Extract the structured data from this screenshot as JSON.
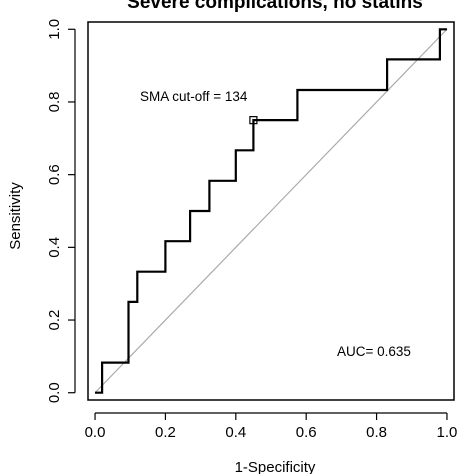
{
  "chart_data": {
    "type": "line",
    "title": "Severe complications, no statins",
    "xlabel": "1-Specificity",
    "ylabel": "Sensitivity",
    "xlim": [
      -0.02,
      1.02
    ],
    "ylim": [
      -0.02,
      1.02
    ],
    "x_ticks": [
      "0.0",
      "0.2",
      "0.4",
      "0.6",
      "0.8",
      "1.0"
    ],
    "y_ticks": [
      "0.0",
      "0.2",
      "0.4",
      "0.6",
      "0.8",
      "1.0"
    ],
    "grid": false,
    "series": [
      {
        "color": "#000000",
        "x": [
          0.0,
          0.02,
          0.02,
          0.095,
          0.095,
          0.12,
          0.12,
          0.2,
          0.2,
          0.27,
          0.27,
          0.325,
          0.325,
          0.4,
          0.4,
          0.45,
          0.45,
          0.575,
          0.575,
          0.83,
          0.83,
          0.98,
          0.98,
          1.0
        ],
        "y": [
          0.0,
          0.0,
          0.083,
          0.083,
          0.25,
          0.25,
          0.333,
          0.333,
          0.417,
          0.417,
          0.5,
          0.5,
          0.583,
          0.583,
          0.667,
          0.667,
          0.75,
          0.75,
          0.833,
          0.833,
          0.917,
          0.917,
          1.0,
          1.0
        ]
      }
    ],
    "reference_line": {
      "x": [
        0,
        1
      ],
      "y": [
        0,
        1
      ],
      "color": "#aaaaaa"
    },
    "cutoff_point": {
      "x": 0.45,
      "y": 0.75
    },
    "annotations": {
      "cutoff_label": "SMA cut-off = 134",
      "auc_label": "AUC= 0.635"
    }
  }
}
